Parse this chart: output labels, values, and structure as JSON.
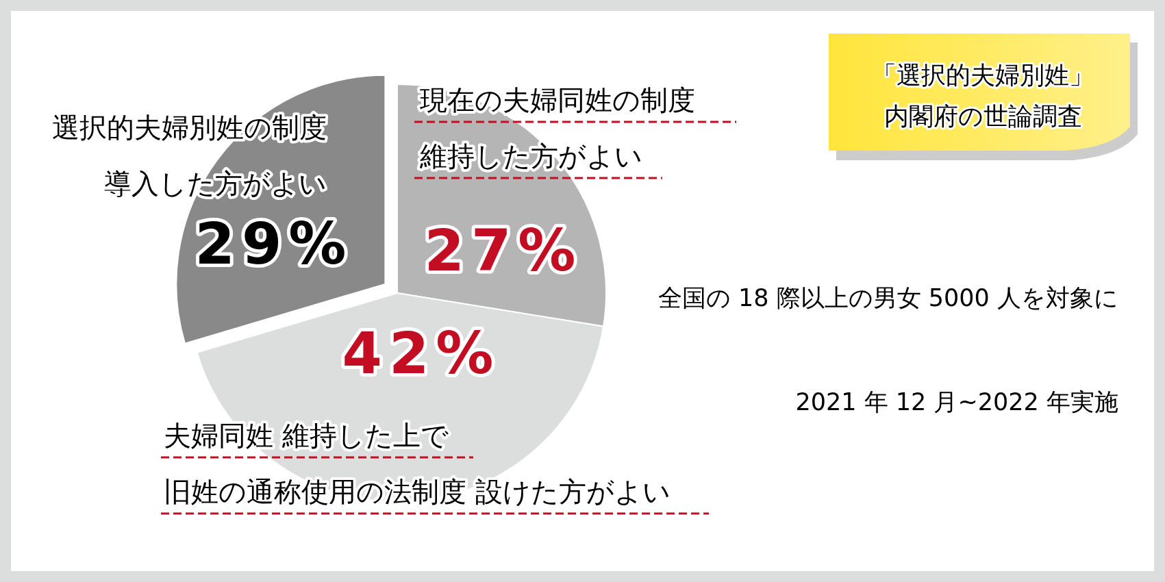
{
  "chart_data": {
    "type": "pie",
    "title": "「選択的夫婦別姓」内閣府の世論調査",
    "categories": [
      "現在の夫婦同姓の制度維持した方がよい",
      "夫婦同姓 維持した上で旧姓の通称使用の法制度 設けた方がよい",
      "選択的夫婦別姓の制度導入した方がよい"
    ],
    "values": [
      27,
      42,
      29
    ],
    "colors": [
      "#b5b5b6",
      "#dcdddd",
      "#898989"
    ],
    "value_labels": [
      "27%",
      "42%",
      "29%"
    ],
    "annotations": [
      "全国の 18 際以上の男女 5000 人を対象に",
      "2021 年 12 月~2022 年実施"
    ]
  }
}
